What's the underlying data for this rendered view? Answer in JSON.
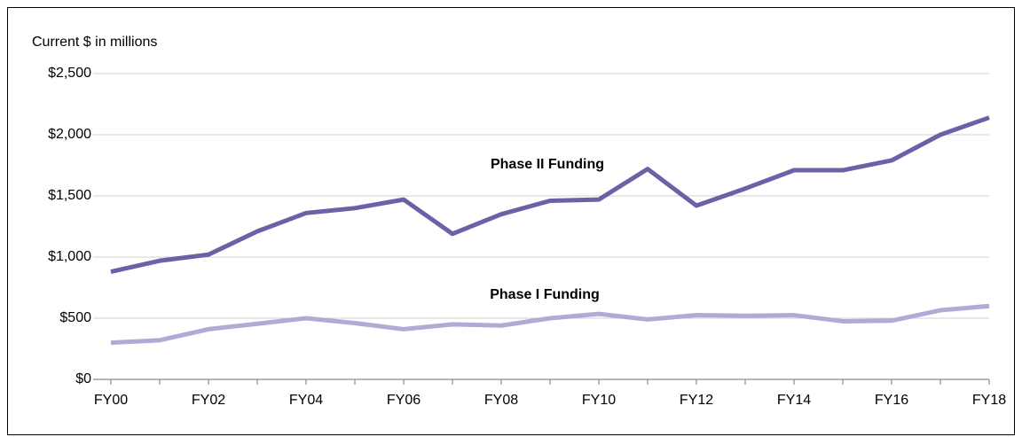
{
  "chart_data": {
    "type": "line",
    "y_axis_label": "Current $ in millions",
    "categories": [
      "FY00",
      null,
      "FY02",
      null,
      "FY04",
      null,
      "FY06",
      null,
      "FY08",
      null,
      "FY10",
      null,
      "FY12",
      null,
      "FY14",
      null,
      "FY16",
      null,
      "FY18"
    ],
    "series": [
      {
        "name": "Phase II Funding",
        "color": "#6f5fa7",
        "values": [
          880,
          970,
          1020,
          1210,
          1360,
          1400,
          1470,
          1190,
          1350,
          1460,
          1470,
          1720,
          1420,
          1560,
          1710,
          1710,
          1790,
          2000,
          2140
        ]
      },
      {
        "name": "Phase I Funding",
        "color": "#b1a9d6",
        "values": [
          300,
          320,
          410,
          455,
          500,
          460,
          410,
          450,
          440,
          500,
          535,
          490,
          525,
          520,
          525,
          475,
          480,
          565,
          600
        ]
      }
    ],
    "ylim": [
      0,
      2500
    ],
    "yticks": [
      {
        "value": 0,
        "label": "$0"
      },
      {
        "value": 500,
        "label": "$500"
      },
      {
        "value": 1000,
        "label": "$1,000"
      },
      {
        "value": 1500,
        "label": "$1,500"
      },
      {
        "value": 2000,
        "label": "$2,000"
      },
      {
        "value": 2500,
        "label": "$2,500"
      }
    ],
    "grid": true
  }
}
